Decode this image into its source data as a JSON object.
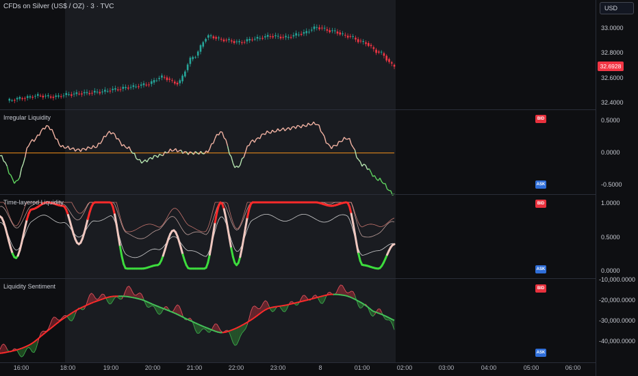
{
  "symbol": {
    "title": "CFDs on Silver (US$ / OZ) · 3 · TVC",
    "currency_button": "USD",
    "last_price": "32.6928"
  },
  "colors": {
    "up": "#26a69a",
    "down": "#f23645",
    "bid": "#e8313d",
    "ask": "#2f6ed8",
    "zero_line": "#f7931a",
    "bright_green": "#3ddc3d",
    "bright_red": "#ff2b2b"
  },
  "time_axis": {
    "labels": [
      "16:00",
      "18:00",
      "19:00",
      "20:00",
      "21:00",
      "22:00",
      "23:00",
      "8",
      "01:00",
      "02:00",
      "03:00",
      "04:00",
      "05:00",
      "06:00"
    ]
  },
  "panes": {
    "price": {
      "ticks": [
        "33.0000",
        "32.8000",
        "32.6000",
        "32.4000"
      ]
    },
    "irregular": {
      "title": "Irregular Liquidity",
      "ticks": [
        "0.5000",
        "0.0000",
        "-0.5000"
      ],
      "bid_label": "BID",
      "ask_label": "ASK"
    },
    "time_layered": {
      "title": "Time-layered Liquidity",
      "ticks": [
        "1.0000",
        "0.5000",
        "0.0000"
      ],
      "bid_label": "BID",
      "ask_label": "ASK"
    },
    "sentiment": {
      "title": "Liquidity Sentiment",
      "ticks": [
        "-10,000.0000",
        "-20,000.0000",
        "-30,000.0000",
        "-40,000.0000"
      ],
      "bid_label": "BID",
      "ask_label": "ASK"
    }
  },
  "chart_data": [
    {
      "type": "line",
      "name": "price",
      "title": "CFDs on Silver (US$ / OZ) · 3 · TVC",
      "ylim": [
        32.35,
        33.1
      ],
      "x": [
        0,
        5,
        10,
        15,
        20,
        25,
        30,
        35,
        40,
        45,
        50,
        55,
        60,
        65,
        70,
        75,
        80,
        85,
        90,
        95,
        100,
        105,
        110,
        115,
        120,
        125
      ],
      "values": [
        32.41,
        32.43,
        32.45,
        32.44,
        32.46,
        32.47,
        32.48,
        32.5,
        32.52,
        32.54,
        32.6,
        32.55,
        32.76,
        32.93,
        32.9,
        32.88,
        32.91,
        32.93,
        32.92,
        32.95,
        33.0,
        32.97,
        32.93,
        32.88,
        32.8,
        32.69
      ]
    },
    {
      "type": "line",
      "name": "irregular",
      "title": "Irregular Liquidity",
      "ylim": [
        -0.7,
        0.6
      ],
      "x": [
        0,
        5,
        10,
        15,
        20,
        25,
        30,
        35,
        40,
        45,
        50,
        55,
        60,
        65,
        70,
        75,
        80,
        85,
        90,
        95,
        100,
        105,
        110,
        115,
        120,
        125
      ],
      "values": [
        -0.05,
        -0.5,
        0.2,
        0.45,
        0.1,
        0.05,
        0.1,
        0.35,
        0.1,
        -0.15,
        -0.05,
        0.05,
        0.0,
        0.0,
        0.35,
        -0.25,
        0.2,
        0.35,
        0.4,
        0.45,
        0.5,
        0.1,
        0.25,
        -0.2,
        -0.45,
        -0.7
      ]
    },
    {
      "type": "line",
      "name": "time_layered",
      "title": "Time-layered Liquidity",
      "ylim": [
        0.0,
        1.0
      ],
      "x": [
        0,
        5,
        10,
        15,
        20,
        25,
        30,
        35,
        40,
        45,
        50,
        55,
        60,
        65,
        70,
        75,
        80,
        85,
        90,
        95,
        100,
        105,
        110,
        115,
        120,
        125
      ],
      "values": [
        0.8,
        0.2,
        0.9,
        1.0,
        0.95,
        0.4,
        1.0,
        1.0,
        0.05,
        0.05,
        0.1,
        0.6,
        0.05,
        0.05,
        1.0,
        0.1,
        1.0,
        1.0,
        1.0,
        1.0,
        1.0,
        0.95,
        1.0,
        0.1,
        0.05,
        0.4
      ]
    },
    {
      "type": "area",
      "name": "sentiment",
      "title": "Liquidity Sentiment",
      "ylim": [
        -45000,
        -10000
      ],
      "x": [
        0,
        5,
        10,
        15,
        20,
        25,
        30,
        35,
        40,
        45,
        50,
        55,
        60,
        65,
        70,
        75,
        80,
        85,
        90,
        95,
        100,
        105,
        110,
        115,
        120,
        125
      ],
      "values": [
        -40000,
        -43000,
        -38000,
        -32000,
        -26000,
        -22000,
        -19000,
        -17000,
        -15000,
        -19000,
        -21000,
        -24000,
        -27000,
        -31000,
        -33000,
        -35000,
        -24000,
        -22000,
        -20000,
        -21000,
        -17000,
        -15000,
        -16000,
        -19000,
        -25000,
        -32000
      ]
    }
  ]
}
